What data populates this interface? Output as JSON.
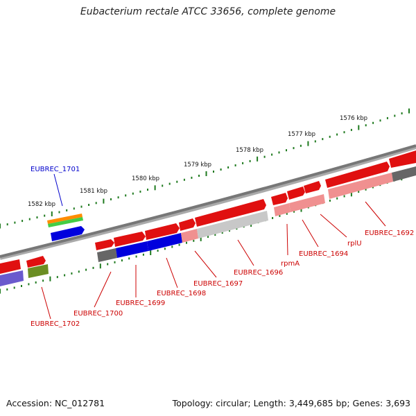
{
  "title": "Eubacterium rectale ATCC 33656, complete genome",
  "footer": {
    "accession": "Accession: NC_012781",
    "topology": "Topology: circular; Length: 3,449,685 bp; Genes: 3,693"
  },
  "colors": {
    "red": "#e01010",
    "pink": "#f09090",
    "blue": "#0000dd",
    "gray": "#666666",
    "light_gray": "#c8c8c8",
    "green_tick": "#1f7a1f",
    "label_red": "#cc0000",
    "label_blue": "#0000cc"
  },
  "kbp_ticks": [
    "1582 kbp",
    "1581 kbp",
    "1580 kbp",
    "1579 kbp",
    "1578 kbp",
    "1577 kbp",
    "1576 kbp"
  ],
  "gene_labels": [
    {
      "id": "EUBREC_1701",
      "color": "blue"
    },
    {
      "id": "EUBREC_1702",
      "color": "red"
    },
    {
      "id": "EUBREC_1700",
      "color": "red"
    },
    {
      "id": "EUBREC_1699",
      "color": "red"
    },
    {
      "id": "EUBREC_1698",
      "color": "red"
    },
    {
      "id": "EUBREC_1697",
      "color": "red"
    },
    {
      "id": "EUBREC_1696",
      "color": "red"
    },
    {
      "id": "rpmA",
      "color": "red"
    },
    {
      "id": "EUBREC_1694",
      "color": "red"
    },
    {
      "id": "rplU",
      "color": "red"
    },
    {
      "id": "EUBREC_1692",
      "color": "red"
    }
  ]
}
